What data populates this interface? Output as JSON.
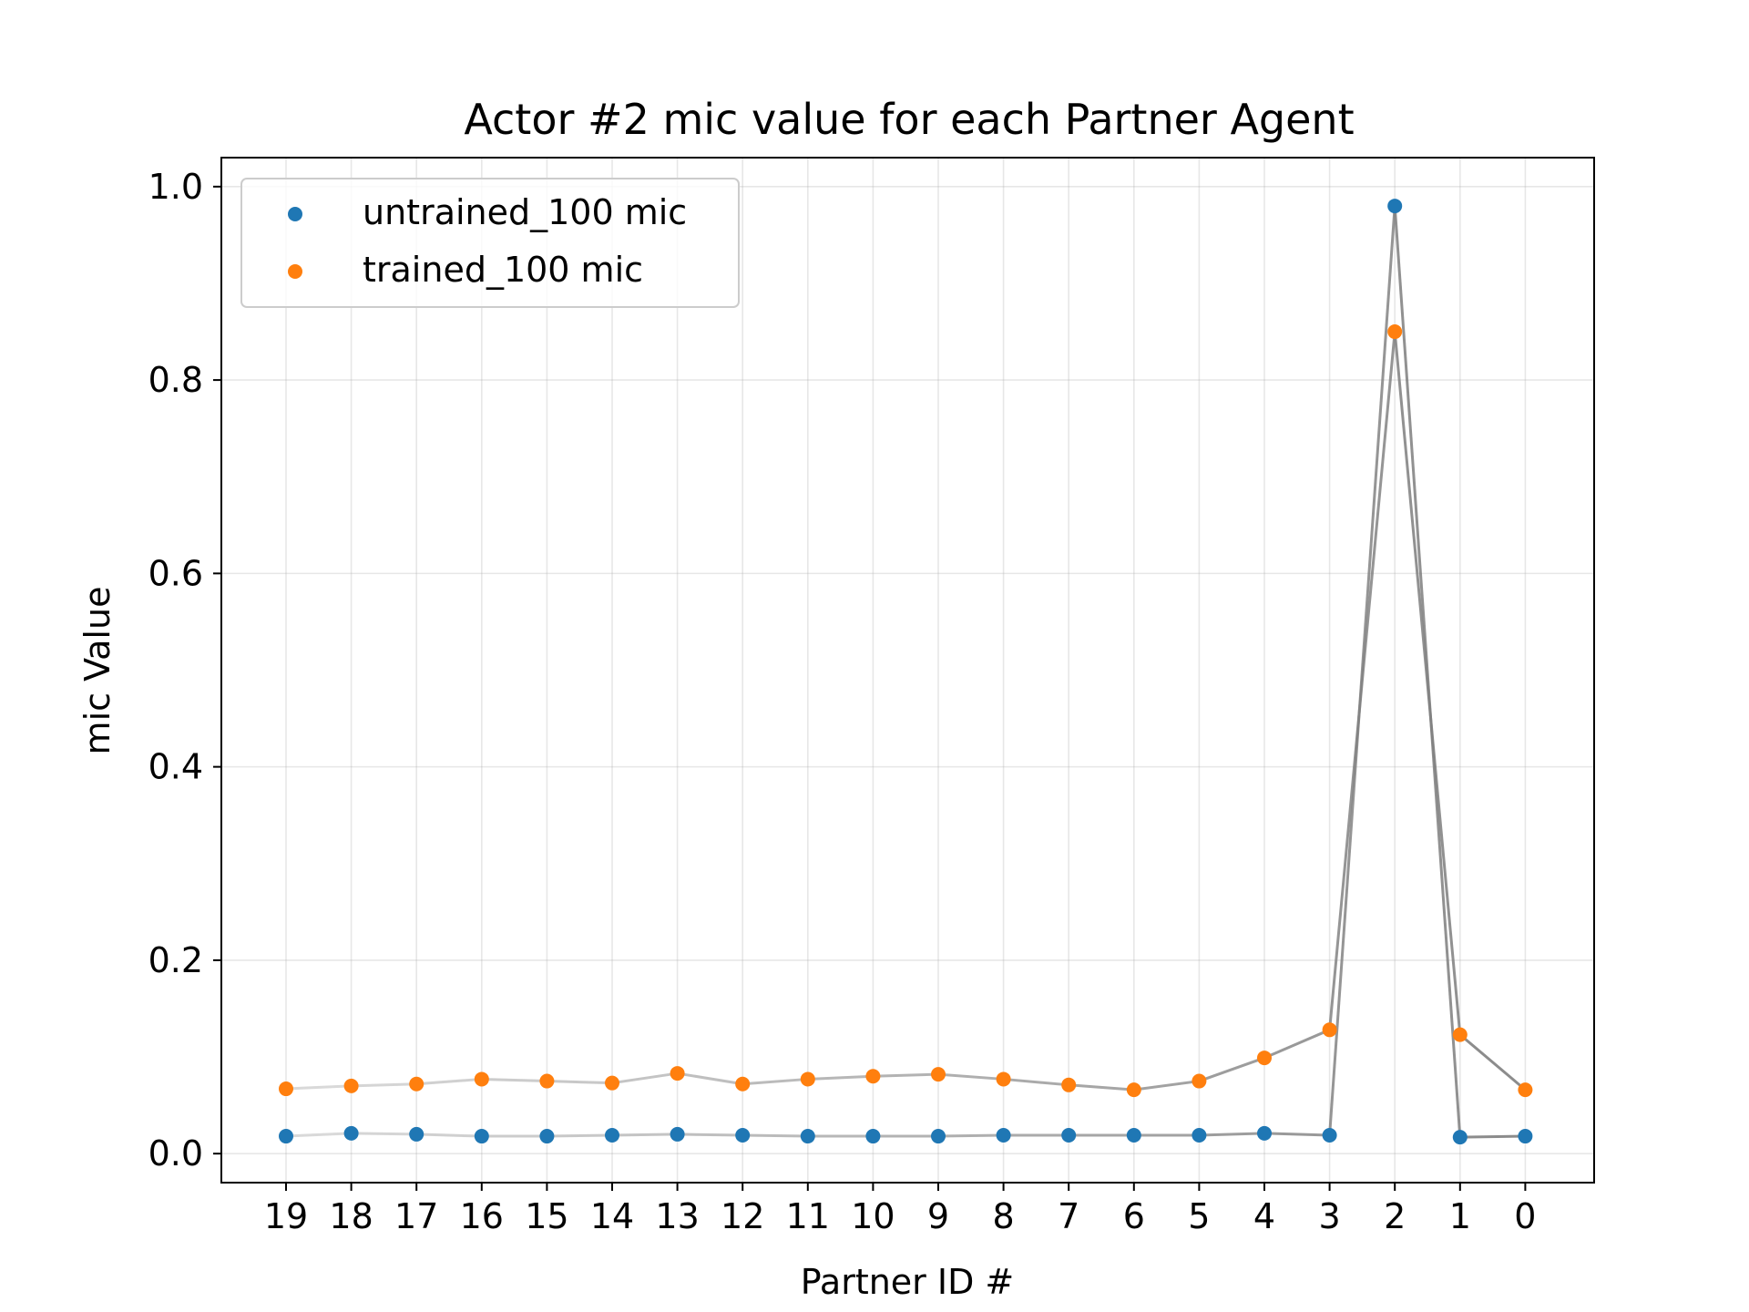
{
  "chart_data": {
    "type": "scatter",
    "title": "Actor #2 mic value for each Partner Agent",
    "xlabel": "Partner ID #",
    "ylabel": "mic Value",
    "categories": [
      "19",
      "18",
      "17",
      "16",
      "15",
      "14",
      "13",
      "12",
      "11",
      "10",
      "9",
      "8",
      "7",
      "6",
      "5",
      "4",
      "3",
      "2",
      "1",
      "0"
    ],
    "ylim": [
      -0.03,
      1.03
    ],
    "yticks": [
      0.0,
      0.2,
      0.4,
      0.6,
      0.8,
      1.0
    ],
    "ytick_labels": [
      "0.0",
      "0.2",
      "0.4",
      "0.6",
      "0.8",
      "1.0"
    ],
    "grid": true,
    "legend_position": "top-left",
    "connector_color": "#808080",
    "series": [
      {
        "name": "untrained_100 mic",
        "color": "#1f77b4",
        "values": [
          0.018,
          0.021,
          0.02,
          0.018,
          0.018,
          0.019,
          0.02,
          0.019,
          0.018,
          0.018,
          0.018,
          0.019,
          0.019,
          0.019,
          0.019,
          0.021,
          0.019,
          0.98,
          0.017,
          0.018
        ]
      },
      {
        "name": "trained_100 mic",
        "color": "#ff7f0e",
        "values": [
          0.067,
          0.07,
          0.072,
          0.077,
          0.075,
          0.073,
          0.083,
          0.072,
          0.077,
          0.08,
          0.082,
          0.077,
          0.071,
          0.066,
          0.075,
          0.099,
          0.128,
          0.85,
          0.123,
          0.066
        ]
      }
    ]
  }
}
